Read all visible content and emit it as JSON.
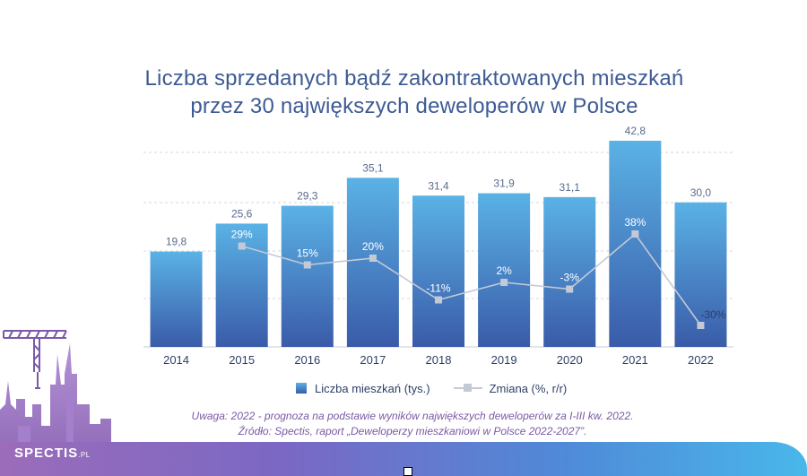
{
  "title": {
    "line1": "Liczba sprzedanych bądź zakontraktowanych mieszkań",
    "line2": "przez 30 największych deweloperów w Polsce"
  },
  "legend": {
    "bars": "Liczba mieszkań (tys.)",
    "line": "Zmiana (%, r/r)"
  },
  "notes": {
    "uwaga": "Uwaga: 2022 - prognoza na podstawie wyników największych deweloperów za I-III kw. 2022.",
    "zrodlo": "Źródło: Spectis, raport „Deweloperzy mieszkaniowi w Polsce 2022-2027”."
  },
  "logo": {
    "name": "SPECTIS",
    "suffix": ".PL"
  },
  "colors": {
    "bar_top": "#5ab2e5",
    "bar_bottom": "#3a5ba9",
    "line": "#c4c9d6",
    "title": "#3d5a94",
    "note": "#7a5aa4"
  },
  "chart_data": {
    "type": "bar",
    "categories": [
      "2014",
      "2015",
      "2016",
      "2017",
      "2018",
      "2019",
      "2020",
      "2021",
      "2022"
    ],
    "series": [
      {
        "name": "Liczba mieszkań (tys.)",
        "type": "bar",
        "values": [
          19.8,
          25.6,
          29.3,
          35.1,
          31.4,
          31.9,
          31.1,
          42.8,
          30.0
        ],
        "labels": [
          "19,8",
          "25,6",
          "29,3",
          "35,1",
          "31,4",
          "31,9",
          "31,1",
          "42,8",
          "30,0"
        ]
      },
      {
        "name": "Zmiana (%, r/r)",
        "type": "line",
        "values": [
          null,
          29,
          15,
          20,
          -11,
          2,
          -3,
          38,
          -30
        ],
        "labels": [
          null,
          "29%",
          "15%",
          "20%",
          "-11%",
          "2%",
          "-3%",
          "38%",
          "-30%"
        ]
      }
    ],
    "grid": true,
    "legend_position": "bottom"
  }
}
